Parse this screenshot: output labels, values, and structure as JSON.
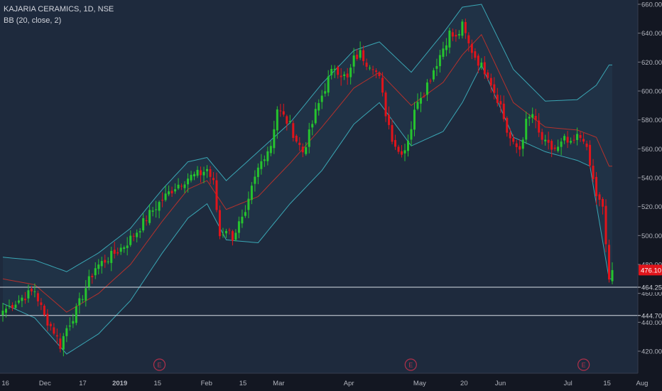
{
  "header": {
    "symbol_line": "KAJARIA CERAMICS, 1D, NSE",
    "indicator_line": "BB (20, close, 2)"
  },
  "colors": {
    "background": "#1e2a3d",
    "up": "#26c42e",
    "down": "#e0141b",
    "band": "#3aa6b4",
    "basis": "#b5312c",
    "hline": "#d8dde6",
    "axis_text": "#b2b5be",
    "earnings": "#b0304a"
  },
  "price_axis": {
    "ticks": [
      "660.00",
      "640.00",
      "620.00",
      "600.00",
      "580.00",
      "560.00",
      "540.00",
      "520.00",
      "500.00",
      "480.00",
      "460.00",
      "440.00",
      "420.00"
    ],
    "last_price_label": "476.10",
    "level_labels": [
      "464.25",
      "444.70"
    ]
  },
  "time_axis": {
    "labels": [
      "16",
      "Dec",
      "17",
      "2019",
      "15",
      "Feb",
      "15",
      "Mar",
      "Apr",
      "May",
      "20",
      "Jun",
      "Jul",
      "15",
      "Aug"
    ]
  },
  "earnings_markers": [
    "E",
    "E",
    "E"
  ],
  "chart_data": {
    "type": "candlestick",
    "title": "KAJARIA CERAMICS, 1D, NSE",
    "indicator": "BB (20, close, 2)",
    "ylim": [
      405,
      662
    ],
    "x_tick_labels": [
      "16",
      "Dec",
      "17",
      "2019",
      "15",
      "Feb",
      "15",
      "Mar",
      "Apr",
      "May",
      "20",
      "Jun",
      "Jul",
      "15",
      "Aug"
    ],
    "y_tick_labels": [
      "660.00",
      "640.00",
      "620.00",
      "600.00",
      "580.00",
      "560.00",
      "540.00",
      "520.00",
      "500.00",
      "480.00",
      "460.00",
      "440.00",
      "420.00"
    ],
    "horizontal_levels": [
      464.25,
      444.7
    ],
    "last_price": 476.1,
    "earnings_positions": [
      0.25,
      0.644,
      0.915
    ],
    "anchors": [
      [
        0,
        448
      ],
      [
        6,
        457
      ],
      [
        10,
        462
      ],
      [
        13,
        444
      ],
      [
        16,
        434
      ],
      [
        18,
        424
      ],
      [
        20,
        436
      ],
      [
        23,
        448
      ],
      [
        26,
        464
      ],
      [
        29,
        478
      ],
      [
        34,
        486
      ],
      [
        38,
        493
      ],
      [
        42,
        503
      ],
      [
        46,
        515
      ],
      [
        50,
        525
      ],
      [
        54,
        534
      ],
      [
        58,
        540
      ],
      [
        62,
        543
      ],
      [
        64,
        546
      ],
      [
        66,
        536
      ],
      [
        68,
        500
      ],
      [
        70,
        505
      ],
      [
        72,
        499
      ],
      [
        74,
        508
      ],
      [
        76,
        513
      ],
      [
        78,
        532
      ],
      [
        80,
        546
      ],
      [
        82,
        556
      ],
      [
        84,
        563
      ],
      [
        86,
        588
      ],
      [
        88,
        582
      ],
      [
        90,
        576
      ],
      [
        92,
        566
      ],
      [
        94,
        558
      ],
      [
        96,
        570
      ],
      [
        98,
        585
      ],
      [
        100,
        597
      ],
      [
        102,
        608
      ],
      [
        104,
        617
      ],
      [
        106,
        612
      ],
      [
        108,
        608
      ],
      [
        110,
        622
      ],
      [
        112,
        626
      ],
      [
        114,
        620
      ],
      [
        116,
        618
      ],
      [
        118,
        608
      ],
      [
        120,
        585
      ],
      [
        122,
        568
      ],
      [
        124,
        558
      ],
      [
        126,
        560
      ],
      [
        128,
        575
      ],
      [
        130,
        595
      ],
      [
        132,
        600
      ],
      [
        134,
        610
      ],
      [
        136,
        620
      ],
      [
        138,
        630
      ],
      [
        140,
        640
      ],
      [
        142,
        636
      ],
      [
        144,
        645
      ],
      [
        146,
        632
      ],
      [
        148,
        624
      ],
      [
        150,
        617
      ],
      [
        152,
        612
      ],
      [
        154,
        600
      ],
      [
        156,
        590
      ],
      [
        158,
        572
      ],
      [
        160,
        562
      ],
      [
        162,
        560
      ],
      [
        164,
        578
      ],
      [
        166,
        584
      ],
      [
        168,
        570
      ],
      [
        170,
        563
      ],
      [
        172,
        560
      ],
      [
        174,
        560
      ],
      [
        176,
        566
      ],
      [
        178,
        562
      ],
      [
        180,
        568
      ],
      [
        182,
        568
      ],
      [
        184,
        548
      ],
      [
        186,
        528
      ],
      [
        188,
        518
      ],
      [
        190,
        470
      ],
      [
        191,
        476.1
      ]
    ],
    "bands_upper": [
      [
        0,
        485
      ],
      [
        10,
        483
      ],
      [
        20,
        475
      ],
      [
        30,
        488
      ],
      [
        40,
        505
      ],
      [
        50,
        532
      ],
      [
        58,
        551
      ],
      [
        64,
        554
      ],
      [
        70,
        538
      ],
      [
        80,
        558
      ],
      [
        90,
        578
      ],
      [
        100,
        605
      ],
      [
        110,
        628
      ],
      [
        118,
        634
      ],
      [
        128,
        613
      ],
      [
        138,
        640
      ],
      [
        144,
        658
      ],
      [
        150,
        660
      ],
      [
        160,
        615
      ],
      [
        170,
        593
      ],
      [
        180,
        594
      ],
      [
        186,
        604
      ],
      [
        190,
        618
      ]
    ],
    "bands_lower": [
      [
        0,
        453
      ],
      [
        10,
        443
      ],
      [
        20,
        418
      ],
      [
        30,
        432
      ],
      [
        40,
        455
      ],
      [
        50,
        488
      ],
      [
        58,
        512
      ],
      [
        64,
        522
      ],
      [
        70,
        497
      ],
      [
        80,
        495
      ],
      [
        90,
        522
      ],
      [
        100,
        545
      ],
      [
        110,
        577
      ],
      [
        118,
        592
      ],
      [
        128,
        562
      ],
      [
        138,
        572
      ],
      [
        144,
        592
      ],
      [
        150,
        618
      ],
      [
        160,
        568
      ],
      [
        170,
        558
      ],
      [
        180,
        552
      ],
      [
        184,
        548
      ],
      [
        190,
        470
      ]
    ],
    "bands_basis": [
      [
        0,
        470
      ],
      [
        10,
        466
      ],
      [
        20,
        447
      ],
      [
        30,
        460
      ],
      [
        40,
        480
      ],
      [
        50,
        510
      ],
      [
        58,
        532
      ],
      [
        64,
        538
      ],
      [
        70,
        518
      ],
      [
        80,
        527
      ],
      [
        90,
        550
      ],
      [
        100,
        575
      ],
      [
        110,
        602
      ],
      [
        118,
        613
      ],
      [
        128,
        590
      ],
      [
        138,
        606
      ],
      [
        144,
        625
      ],
      [
        150,
        639
      ],
      [
        160,
        592
      ],
      [
        170,
        575
      ],
      [
        180,
        573
      ],
      [
        186,
        568
      ],
      [
        190,
        548
      ]
    ]
  }
}
